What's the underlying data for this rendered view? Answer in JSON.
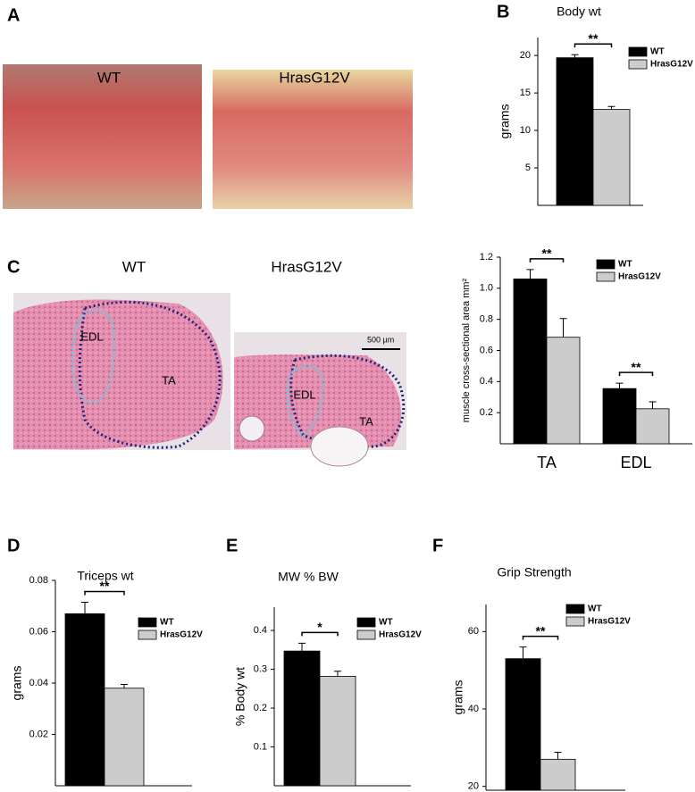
{
  "figure": {
    "panel_labels": [
      "A",
      "B",
      "C",
      "D",
      "E",
      "F"
    ],
    "photo_labels": [
      "WT",
      "HrasG12V",
      "WT",
      "HrasG12V"
    ],
    "histology_labels": [
      "EDL",
      "TA",
      "EDL",
      "TA"
    ],
    "scale_bar": "500 µm"
  },
  "chart_data": [
    {
      "type": "bar",
      "title": "Body wt",
      "y_label": "grams",
      "categories": [
        null
      ],
      "series": [
        {
          "name": "WT",
          "color": "#000000",
          "values": [
            19.7
          ],
          "errors": [
            0.4
          ]
        },
        {
          "name": "HrasG12V",
          "color": "#cccccc",
          "values": [
            12.8
          ],
          "errors": [
            0.4
          ]
        }
      ],
      "significance": [
        "**"
      ],
      "ylim": [
        0,
        22.4
      ],
      "yticks": [
        5,
        10,
        15,
        20
      ]
    },
    {
      "type": "bar",
      "y_label": "muscle cross-sectional area mm²",
      "categories": [
        "TA",
        "EDL"
      ],
      "series": [
        {
          "name": "WT",
          "color": "#000000",
          "values": [
            1.06,
            0.355
          ],
          "errors": [
            0.06,
            0.035
          ]
        },
        {
          "name": "HrasG12V",
          "color": "#cccccc",
          "values": [
            0.685,
            0.225
          ],
          "errors": [
            0.12,
            0.045
          ]
        }
      ],
      "significance": [
        "**",
        "**"
      ],
      "ylim": [
        0,
        1.2
      ],
      "yticks": [
        0.2,
        0.4,
        0.6,
        0.8,
        {
          "value": 1,
          "label": "1.0"
        },
        1.2
      ]
    },
    {
      "type": "bar",
      "title": "Triceps wt",
      "y_label": "grams",
      "categories": [
        null
      ],
      "series": [
        {
          "name": "WT",
          "color": "#000000",
          "values": [
            0.067
          ],
          "errors": [
            0.0045
          ]
        },
        {
          "name": "HrasG12V",
          "color": "#cccccc",
          "values": [
            0.038
          ],
          "errors": [
            0.0015
          ]
        }
      ],
      "significance": [
        "**"
      ],
      "ylim": [
        0,
        0.08
      ],
      "yticks": [
        0.02,
        0.04,
        0.06,
        0.08
      ]
    },
    {
      "type": "bar",
      "title": "MW % BW",
      "y_label": "% Body wt",
      "categories": [
        null
      ],
      "series": [
        {
          "name": "WT",
          "color": "#000000",
          "values": [
            0.347
          ],
          "errors": [
            0.02
          ]
        },
        {
          "name": "HrasG12V",
          "color": "#cccccc",
          "values": [
            0.282
          ],
          "errors": [
            0.013
          ]
        }
      ],
      "significance": [
        "*"
      ],
      "ylim": [
        0,
        0.46
      ],
      "yticks": [
        0.1,
        0.2,
        0.3,
        0.4
      ]
    },
    {
      "type": "bar",
      "title": "Grip Strength",
      "y_label": "grams",
      "categories": [
        null
      ],
      "series": [
        {
          "name": "WT",
          "color": "#000000",
          "values": [
            53
          ],
          "errors": [
            3
          ]
        },
        {
          "name": "HrasG12V",
          "color": "#cccccc",
          "values": [
            27
          ],
          "errors": [
            1.8
          ]
        }
      ],
      "significance": [
        "**"
      ],
      "ylim": [
        19,
        67
      ],
      "yticks": [
        20,
        40,
        60
      ]
    }
  ]
}
